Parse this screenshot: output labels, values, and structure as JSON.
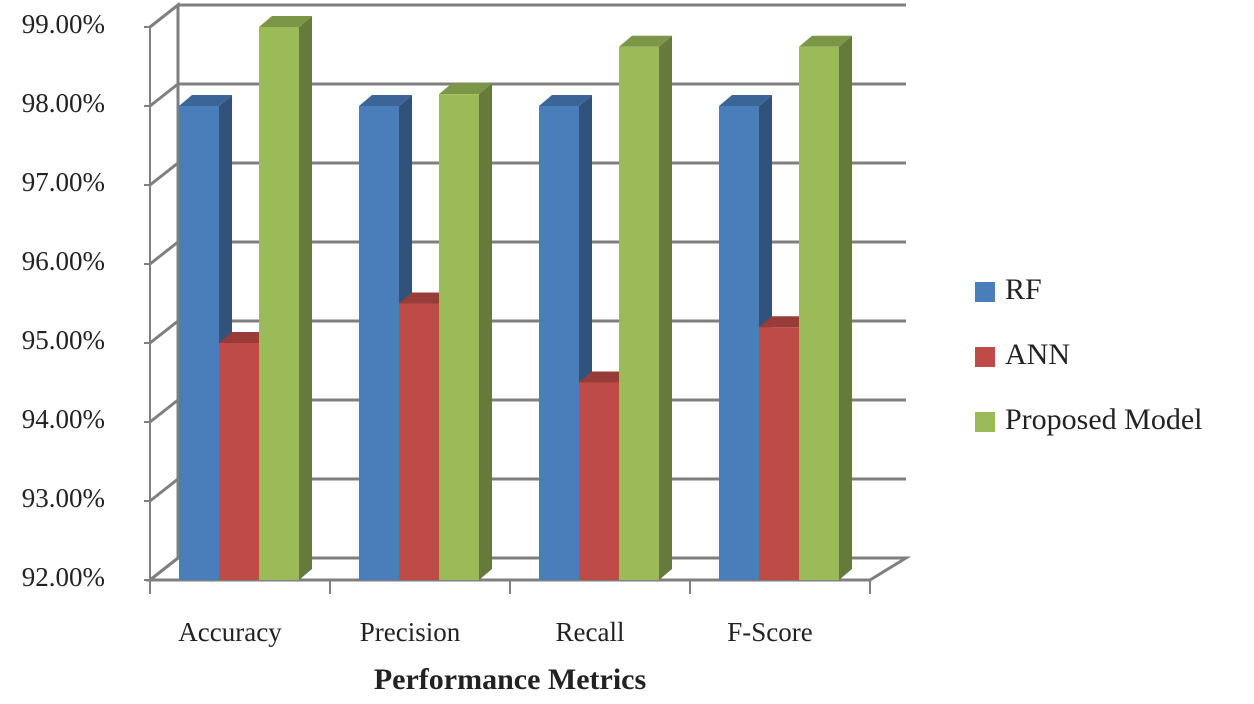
{
  "chart_data": {
    "type": "bar3d",
    "x_label": "Performance Metrics",
    "categories": [
      "Accuracy",
      "Precision",
      "Recall",
      "F-Score"
    ],
    "series": [
      {
        "name": "RF",
        "color": "#4a7ebb",
        "values": [
          98,
          98,
          98,
          98
        ]
      },
      {
        "name": "ANN",
        "color": "#be4b48",
        "values": [
          95,
          95.5,
          94.5,
          95.2
        ]
      },
      {
        "name": "Proposed Model",
        "color": "#9bbb59",
        "values": [
          99,
          98.15,
          98.75,
          98.75
        ]
      }
    ],
    "ylim": [
      92,
      99
    ],
    "yticks": [
      {
        "value": 92,
        "label": "92.00%"
      },
      {
        "value": 93,
        "label": "93.00%"
      },
      {
        "value": 94,
        "label": "94.00%"
      },
      {
        "value": 95,
        "label": "95.00%"
      },
      {
        "value": 96,
        "label": "96.00%"
      },
      {
        "value": 97,
        "label": "97.00%"
      },
      {
        "value": 98,
        "label": "98.00%"
      },
      {
        "value": 99,
        "label": "99.00%"
      }
    ],
    "grid": true,
    "legend": "right"
  }
}
